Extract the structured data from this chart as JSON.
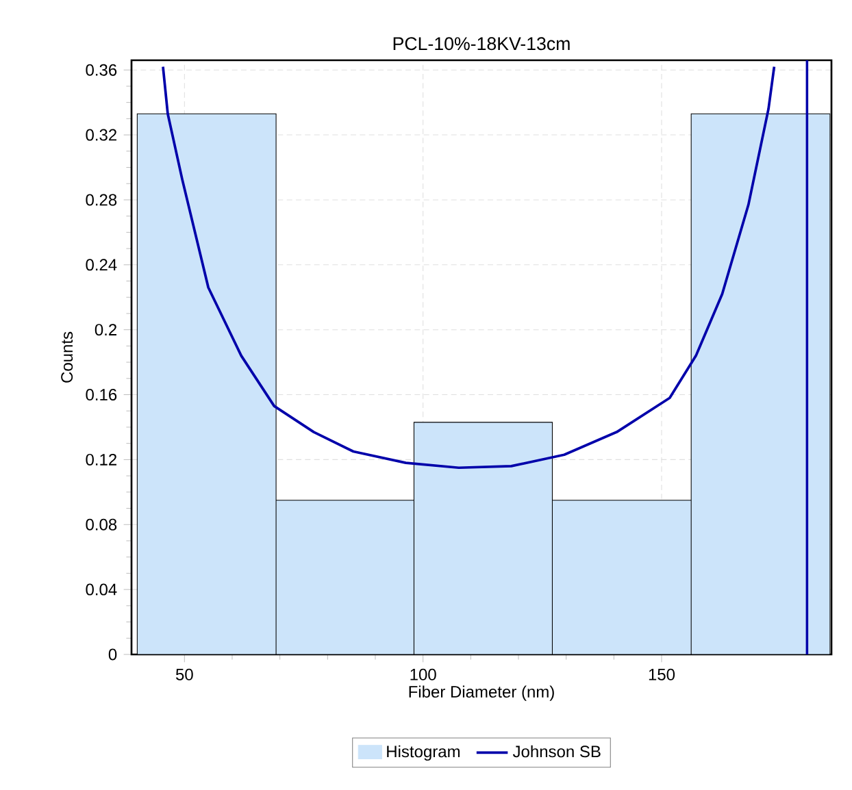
{
  "chart_data": {
    "type": "histogram",
    "title": "PCL-10%-18KV-13cm",
    "xlabel": "Fiber Diameter (nm)",
    "ylabel": "Counts",
    "series": [
      {
        "name": "Histogram",
        "color": "#cce4fa",
        "bins": [
          40.1,
          69.2,
          98.1,
          127.1,
          156.2,
          185.3
        ],
        "values": [
          0.333,
          0.095,
          0.143,
          0.095,
          0.333
        ]
      },
      {
        "name": "Johnson SB",
        "type": "line",
        "color": "#0000aa",
        "x": [
          45.5,
          46.5,
          49.5,
          55.0,
          61.9,
          68.8,
          77.1,
          85.4,
          96.4,
          107.5,
          118.5,
          129.6,
          140.6,
          151.7,
          157.2,
          162.7,
          168.2,
          172.4,
          173.6
        ],
        "values": [
          0.362,
          0.333,
          0.293,
          0.226,
          0.184,
          0.153,
          0.137,
          0.125,
          0.118,
          0.115,
          0.116,
          0.123,
          0.137,
          0.158,
          0.184,
          0.222,
          0.277,
          0.336,
          0.362
        ]
      }
    ],
    "ref_lines": [
      {
        "axis": "x",
        "value": 180.5,
        "color": "#0000aa"
      }
    ],
    "xlim": [
      38.9,
      185.6
    ],
    "xticks": [
      50,
      100,
      150
    ],
    "ylim": [
      0,
      0.366
    ],
    "yticks": [
      0,
      0.04,
      0.08,
      0.12,
      0.16,
      0.2,
      0.24,
      0.28,
      0.32,
      0.36
    ],
    "grid": true,
    "legend": "bottom"
  }
}
